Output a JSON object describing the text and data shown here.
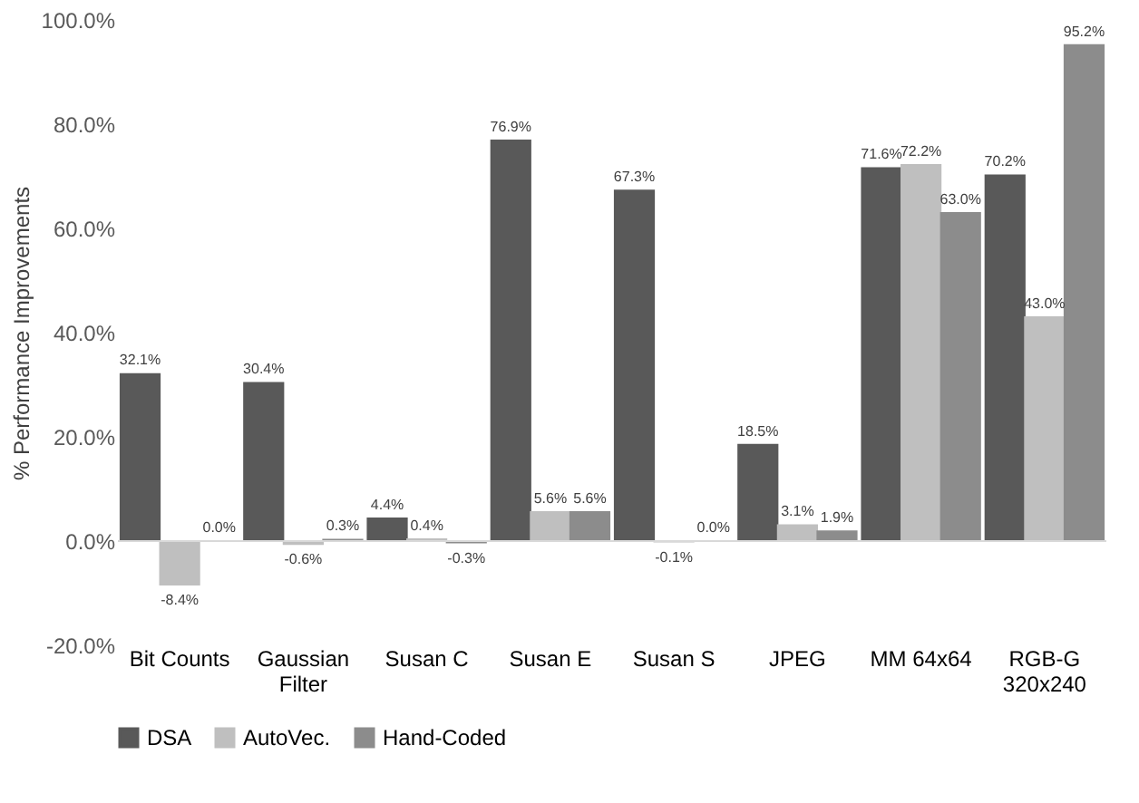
{
  "chart_data": {
    "type": "bar",
    "ylabel": "% Performance Improvements",
    "categories": [
      "Bit Counts",
      "Gaussian\nFilter",
      "Susan C",
      "Susan E",
      "Susan S",
      "JPEG",
      "MM 64x64",
      "RGB-G\n320x240"
    ],
    "series": [
      {
        "name": "DSA",
        "color": "#595959",
        "values": [
          32.1,
          30.4,
          4.4,
          76.9,
          67.3,
          18.5,
          71.6,
          70.2
        ],
        "value_labels": [
          "32.1%",
          "30.4%",
          "4.4%",
          "76.9%",
          "67.3%",
          "18.5%",
          "71.6%",
          "70.2%"
        ]
      },
      {
        "name": "AutoVec.",
        "color": "#bfbfbf",
        "values": [
          -8.4,
          -0.6,
          0.4,
          5.6,
          -0.1,
          3.1,
          72.2,
          43.0
        ],
        "value_labels": [
          "-8.4%",
          "-0.6%",
          "0.4%",
          "5.6%",
          "-0.1%",
          "3.1%",
          "72.2%",
          "43.0%"
        ]
      },
      {
        "name": "Hand-Coded",
        "color": "#8c8c8c",
        "values": [
          0.0,
          0.3,
          -0.3,
          5.6,
          0.0,
          1.9,
          63.0,
          95.2
        ],
        "value_labels": [
          "0.0%",
          "0.3%",
          "-0.3%",
          "5.6%",
          "0.0%",
          "1.9%",
          "63.0%",
          "95.2%"
        ]
      }
    ],
    "ylim": [
      -20,
      100
    ],
    "yticks": [
      {
        "value": -20,
        "label": "-20.0%"
      },
      {
        "value": 0,
        "label": "0.0%"
      },
      {
        "value": 20,
        "label": "20.0%"
      },
      {
        "value": 40,
        "label": "40.0%"
      },
      {
        "value": 60,
        "label": "60.0%"
      },
      {
        "value": 80,
        "label": "80.0%"
      },
      {
        "value": 100,
        "label": "100.0%"
      }
    ],
    "ref_lines": [
      {
        "axis": "y",
        "value": 0,
        "color": "#d9d9d9"
      }
    ],
    "grid": false,
    "legend": "bottom"
  }
}
